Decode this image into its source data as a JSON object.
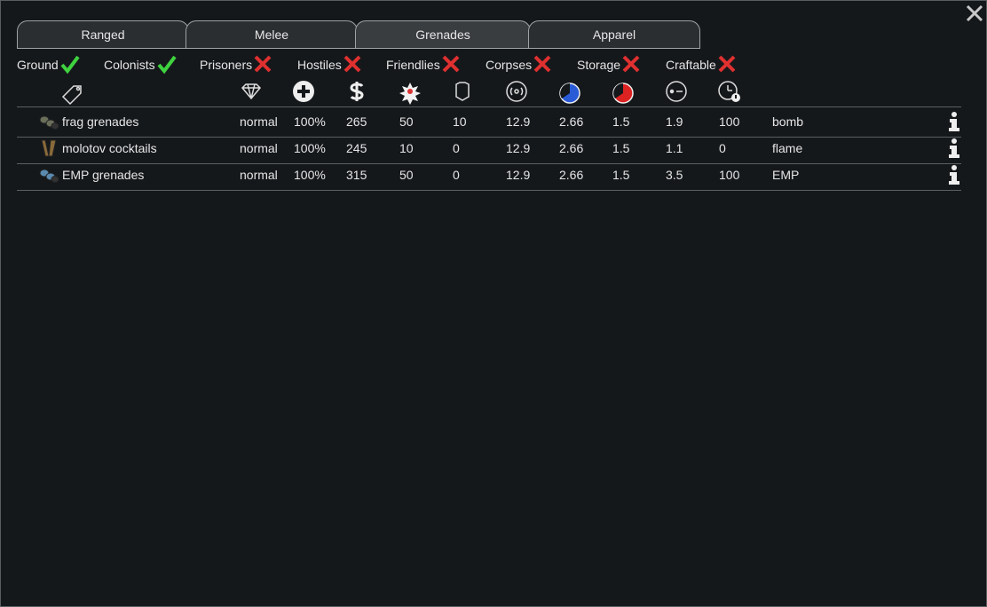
{
  "tabs": [
    "Ranged",
    "Melee",
    "Grenades",
    "Apparel"
  ],
  "active_tab": 2,
  "filters": [
    {
      "label": "Ground",
      "checked": true
    },
    {
      "label": "Colonists",
      "checked": true
    },
    {
      "label": "Prisoners",
      "checked": false
    },
    {
      "label": "Hostiles",
      "checked": false
    },
    {
      "label": "Friendlies",
      "checked": false
    },
    {
      "label": "Corpses",
      "checked": false
    },
    {
      "label": "Storage",
      "checked": false
    },
    {
      "label": "Craftable",
      "checked": false
    }
  ],
  "table": {
    "rows": [
      [
        "frag grenades",
        "normal",
        "100%",
        "265",
        "50",
        "10",
        "12.9",
        "2.66",
        "1.5",
        "1.9",
        "100",
        "bomb"
      ],
      [
        "molotov cocktails",
        "normal",
        "100%",
        "245",
        "10",
        "0",
        "12.9",
        "2.66",
        "1.5",
        "1.1",
        "0",
        "flame"
      ],
      [
        "EMP grenades",
        "normal",
        "100%",
        "315",
        "50",
        "0",
        "12.9",
        "2.66",
        "1.5",
        "3.5",
        "100",
        "EMP"
      ]
    ]
  }
}
